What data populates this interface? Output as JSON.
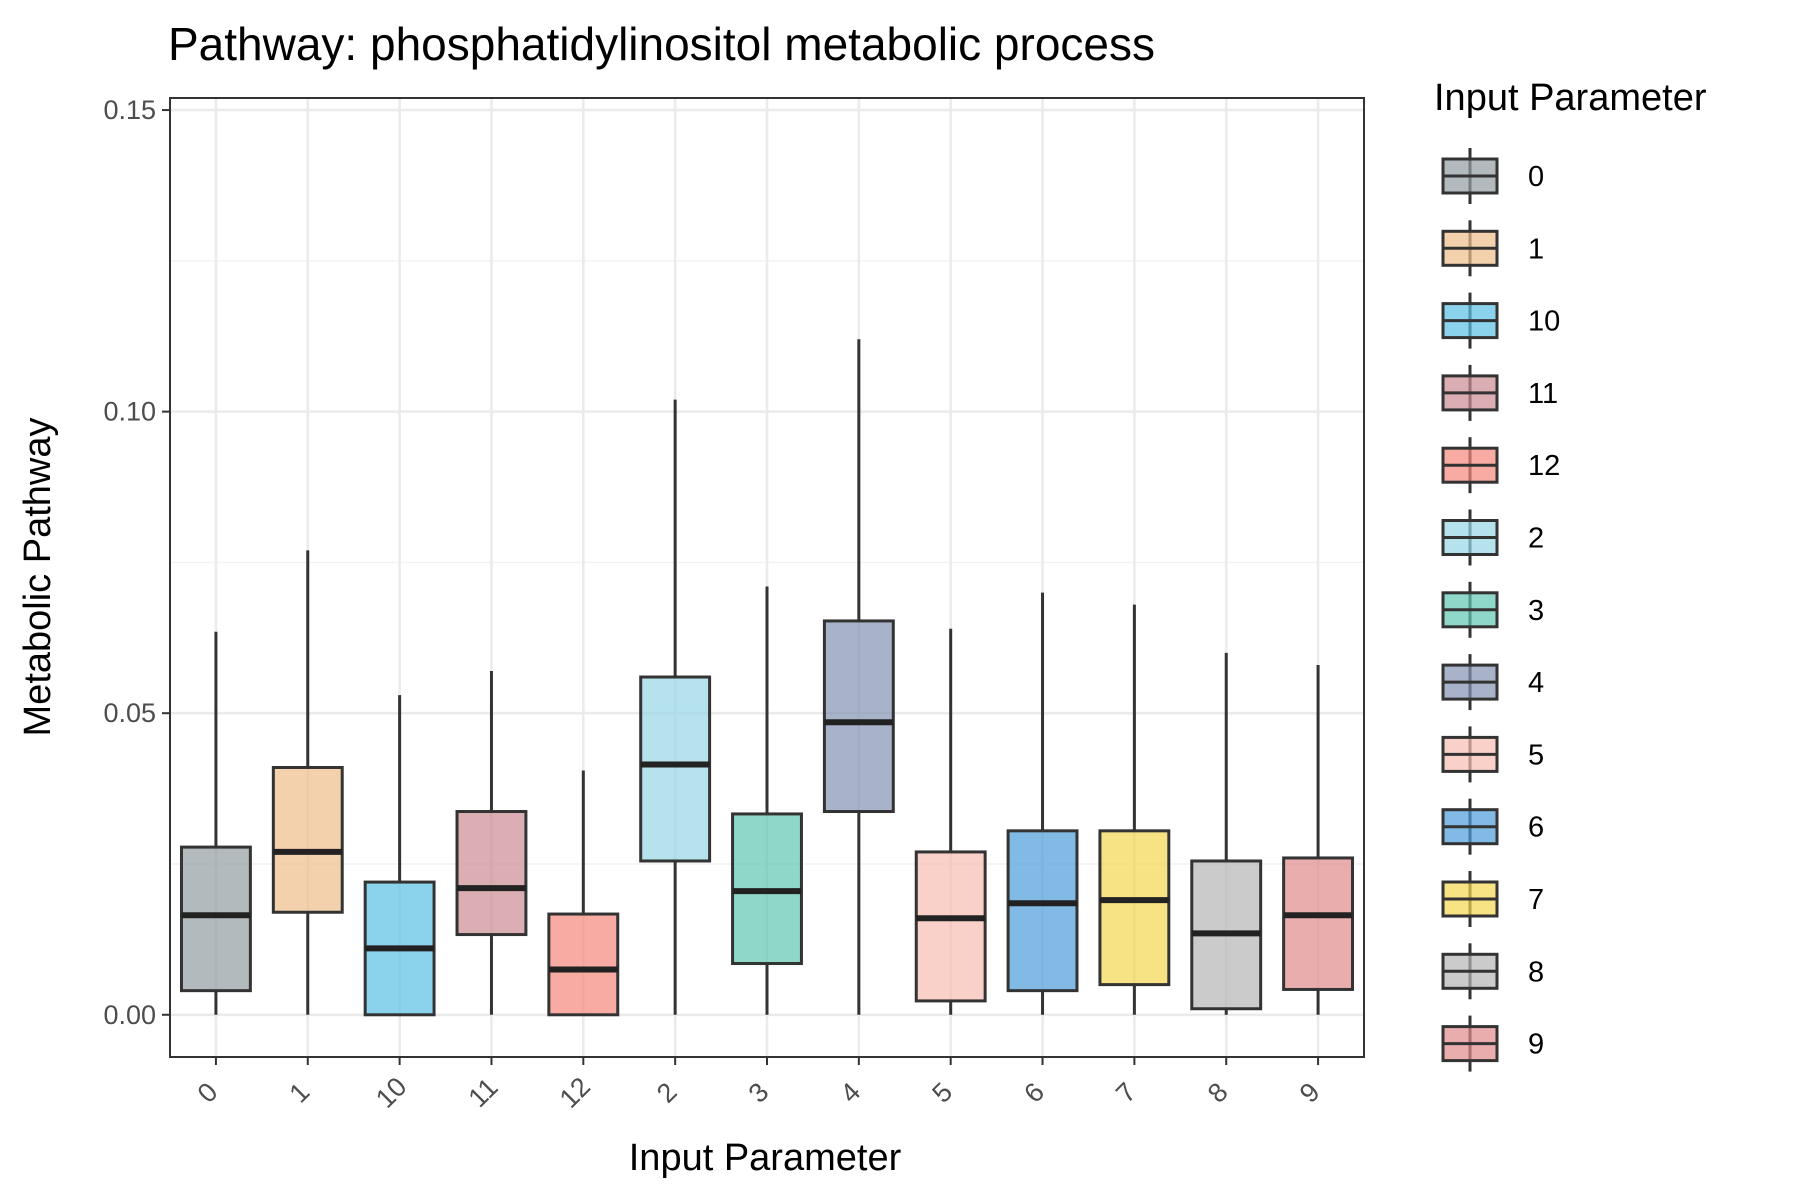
{
  "chart_data": {
    "type": "boxplot",
    "title": "Pathway: phosphatidylinositol metabolic process",
    "xlabel": "Input Parameter",
    "ylabel": "Metabolic Pathway",
    "ylim": [
      -0.007,
      0.152
    ],
    "yticks": [
      0.0,
      0.05,
      0.1,
      0.15
    ],
    "ytick_labels": [
      "0.00",
      "0.05",
      "0.10",
      "0.15"
    ],
    "grid": true,
    "legend": {
      "title": "Input Parameter",
      "placement": "right"
    },
    "categories": [
      "0",
      "1",
      "10",
      "11",
      "12",
      "2",
      "3",
      "4",
      "5",
      "6",
      "7",
      "8",
      "9"
    ],
    "boxes": [
      {
        "label": "0",
        "min": 0.0,
        "q1": 0.004,
        "median": 0.0165,
        "q3": 0.0278,
        "max": 0.0635,
        "color": "#929da3"
      },
      {
        "label": "1",
        "min": 0.0,
        "q1": 0.017,
        "median": 0.027,
        "q3": 0.041,
        "max": 0.077,
        "color": "#efbd8a"
      },
      {
        "label": "10",
        "min": 0.0,
        "q1": 0.0,
        "median": 0.011,
        "q3": 0.022,
        "max": 0.053,
        "color": "#5ac0e6"
      },
      {
        "label": "11",
        "min": 0.0,
        "q1": 0.0133,
        "median": 0.021,
        "q3": 0.0337,
        "max": 0.057,
        "color": "#cc8c93"
      },
      {
        "label": "12",
        "min": 0.0,
        "q1": 0.0,
        "median": 0.0075,
        "q3": 0.0167,
        "max": 0.0405,
        "color": "#f3877b"
      },
      {
        "label": "2",
        "min": 0.0,
        "q1": 0.0255,
        "median": 0.0415,
        "q3": 0.056,
        "max": 0.102,
        "color": "#96d6e4"
      },
      {
        "label": "3",
        "min": 0.0,
        "q1": 0.0085,
        "median": 0.0205,
        "q3": 0.0333,
        "max": 0.071,
        "color": "#5fc6b2"
      },
      {
        "label": "4",
        "min": 0.0,
        "q1": 0.0337,
        "median": 0.0485,
        "q3": 0.0653,
        "max": 0.112,
        "color": "#8391b2"
      },
      {
        "label": "5",
        "min": 0.0,
        "q1": 0.0023,
        "median": 0.016,
        "q3": 0.027,
        "max": 0.064,
        "color": "#f7bdb0"
      },
      {
        "label": "6",
        "min": 0.0,
        "q1": 0.004,
        "median": 0.0185,
        "q3": 0.0305,
        "max": 0.07,
        "color": "#4b9cd9"
      },
      {
        "label": "7",
        "min": 0.0,
        "q1": 0.005,
        "median": 0.019,
        "q3": 0.0305,
        "max": 0.068,
        "color": "#f4d650"
      },
      {
        "label": "8",
        "min": 0.0,
        "q1": 0.001,
        "median": 0.0135,
        "q3": 0.0255,
        "max": 0.06,
        "color": "#b5b5b5"
      },
      {
        "label": "9",
        "min": 0.0,
        "q1": 0.0042,
        "median": 0.0165,
        "q3": 0.026,
        "max": 0.058,
        "color": "#e18a8c"
      }
    ]
  }
}
